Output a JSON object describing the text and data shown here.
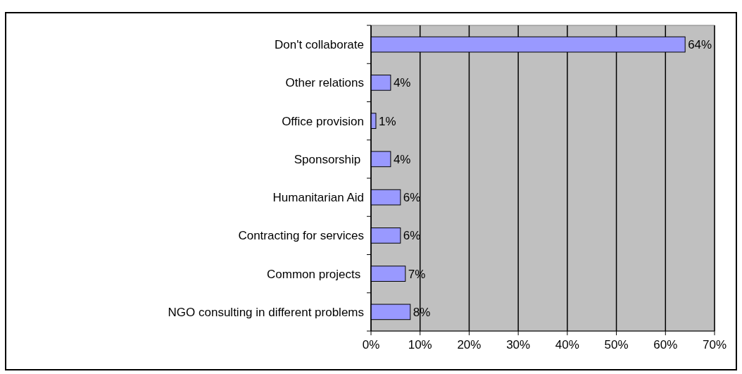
{
  "chart_data": {
    "type": "bar",
    "orientation": "horizontal",
    "categories": [
      "Don't collaborate",
      "Other relations",
      "Office provision",
      "Sponsorship ",
      "Humanitarian Aid",
      "Contracting for services",
      "Common projects ",
      "NGO consulting in different problems"
    ],
    "values": [
      64,
      4,
      1,
      4,
      6,
      6,
      7,
      8
    ],
    "value_labels": [
      "64%",
      "4%",
      "1%",
      "4%",
      "6%",
      "6%",
      "7%",
      "8%"
    ],
    "color": "#9999ff",
    "xlim": [
      0,
      70
    ],
    "xticks": [
      {
        "value": 0,
        "label": "0%"
      },
      {
        "value": 10,
        "label": "10%"
      },
      {
        "value": 20,
        "label": "20%"
      },
      {
        "value": 30,
        "label": "30%"
      },
      {
        "value": 40,
        "label": "40%"
      },
      {
        "value": 50,
        "label": "50%"
      },
      {
        "value": 60,
        "label": "60%"
      },
      {
        "value": 70,
        "label": "70%"
      }
    ],
    "grid": "x"
  }
}
